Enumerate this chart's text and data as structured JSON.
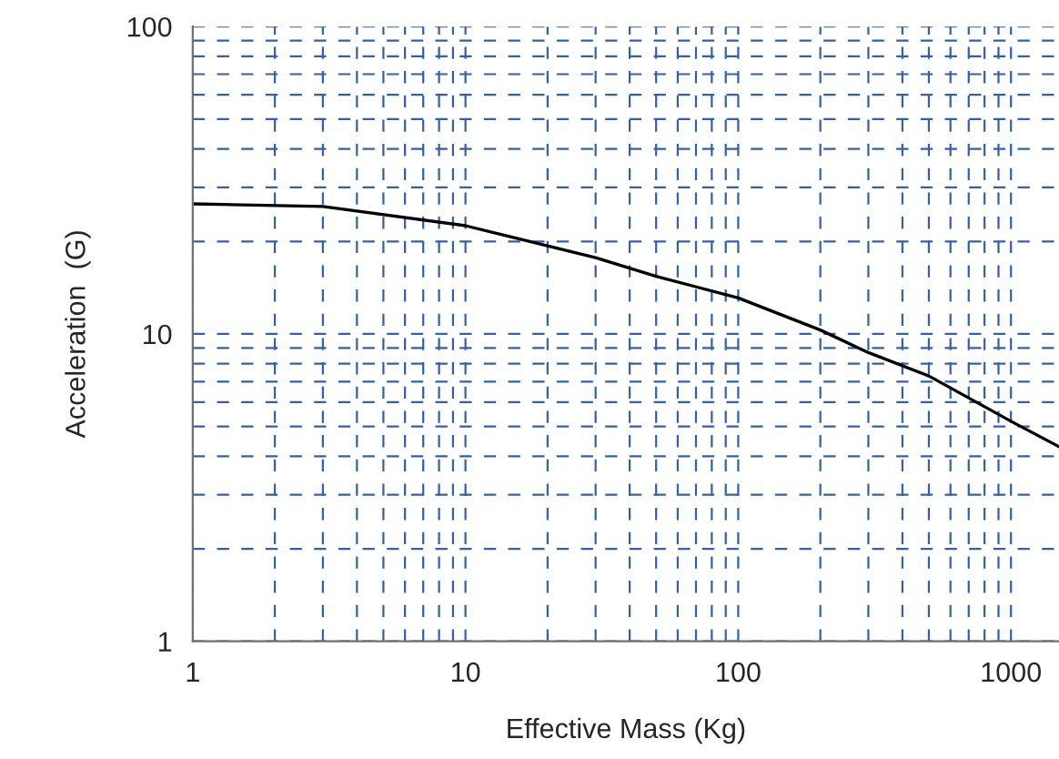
{
  "chart_data": {
    "type": "line",
    "xlabel": "Effective Mass (Kg)",
    "ylabel": "Acceleration  (G)",
    "log": "xy",
    "grid": true,
    "marker": "none",
    "line_style": "solid",
    "xlim": [
      1,
      1500
    ],
    "ylim": [
      1,
      100
    ],
    "xticks": [
      1,
      {
        "value": 2,
        "label": null
      },
      {
        "value": 3,
        "label": null
      },
      {
        "value": 4,
        "label": null
      },
      {
        "value": 5,
        "label": null
      },
      {
        "value": 6,
        "label": null
      },
      {
        "value": 7,
        "label": null
      },
      {
        "value": 8,
        "label": null
      },
      {
        "value": 9,
        "label": null
      },
      10,
      {
        "value": 20,
        "label": null
      },
      {
        "value": 30,
        "label": null
      },
      {
        "value": 40,
        "label": null
      },
      {
        "value": 50,
        "label": null
      },
      {
        "value": 60,
        "label": null
      },
      {
        "value": 70,
        "label": null
      },
      {
        "value": 80,
        "label": null
      },
      {
        "value": 90,
        "label": null
      },
      100,
      {
        "value": 200,
        "label": null
      },
      {
        "value": 300,
        "label": null
      },
      {
        "value": 400,
        "label": null
      },
      {
        "value": 500,
        "label": null
      },
      {
        "value": 600,
        "label": null
      },
      {
        "value": 700,
        "label": null
      },
      {
        "value": 800,
        "label": null
      },
      {
        "value": 900,
        "label": null
      },
      1000
    ],
    "yticks": [
      1,
      {
        "value": 2,
        "label": null
      },
      {
        "value": 3,
        "label": null
      },
      {
        "value": 4,
        "label": null
      },
      {
        "value": 5,
        "label": null
      },
      {
        "value": 6,
        "label": null
      },
      {
        "value": 7,
        "label": null
      },
      {
        "value": 8,
        "label": null
      },
      {
        "value": 9,
        "label": null
      },
      10,
      {
        "value": 20,
        "label": null
      },
      {
        "value": 30,
        "label": null
      },
      {
        "value": 40,
        "label": null
      },
      {
        "value": 50,
        "label": null
      },
      {
        "value": 60,
        "label": null
      },
      {
        "value": 70,
        "label": null
      },
      {
        "value": 80,
        "label": null
      },
      {
        "value": 90,
        "label": null
      },
      100
    ],
    "x": [
      1,
      3,
      10,
      30,
      50,
      100,
      200,
      300,
      500,
      1000,
      1500
    ],
    "series": [
      {
        "color": "#000000",
        "values": [
          26.5,
          26,
          22.5,
          17.7,
          15.4,
          13.1,
          10.3,
          8.7,
          7.3,
          5.2,
          4.3
        ]
      }
    ]
  }
}
